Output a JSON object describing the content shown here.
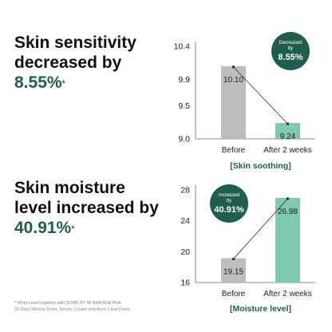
{
  "headline_1": {
    "line1": "Skin sensitivity",
    "line2": "decreased by",
    "value": "8.55%",
    "mark": "*"
  },
  "headline_2": {
    "line1": "Skin moisture",
    "line2": "level increased by",
    "value": "40.91%",
    "mark": "*"
  },
  "footnote": {
    "line1": "* When used together with SOME BY MI AHA BHA PHA",
    "line2": "30 Days Miracle Toner, Serum, Cream and Acne Clear Foam."
  },
  "colors": {
    "accent": "#1f5e4e",
    "bar_before": "#bdbdbd",
    "bar_after": "#7dc9b2",
    "text": "#111111"
  },
  "chart_data": [
    {
      "type": "bar",
      "title": "[Skin soothing]",
      "categories": [
        "Before",
        "After 2 weeks"
      ],
      "values": [
        10.1,
        9.24
      ],
      "value_labels": [
        "10.10",
        "9.24"
      ],
      "ylim": [
        9.0,
        10.4
      ],
      "yticks": [
        9.0,
        9.5,
        9.9,
        10.4
      ],
      "ytick_labels": [
        "9.0",
        "9.5",
        "9.9",
        "10.4"
      ],
      "badge": {
        "top": "Decreased",
        "mid": "by",
        "value": "8.55%"
      },
      "connector_line": true,
      "grid": false
    },
    {
      "type": "bar",
      "title": "[Moisture level]",
      "categories": [
        "Before",
        "After 2 weeks"
      ],
      "values": [
        19.15,
        26.98
      ],
      "value_labels": [
        "19.15",
        "26.98"
      ],
      "ylim": [
        16,
        28
      ],
      "yticks": [
        16,
        20,
        24,
        28
      ],
      "ytick_labels": [
        "16",
        "20",
        "24",
        "28"
      ],
      "badge": {
        "top": "Increased",
        "mid": "by",
        "value": "40.91%"
      },
      "connector_line": true,
      "grid": false
    }
  ]
}
